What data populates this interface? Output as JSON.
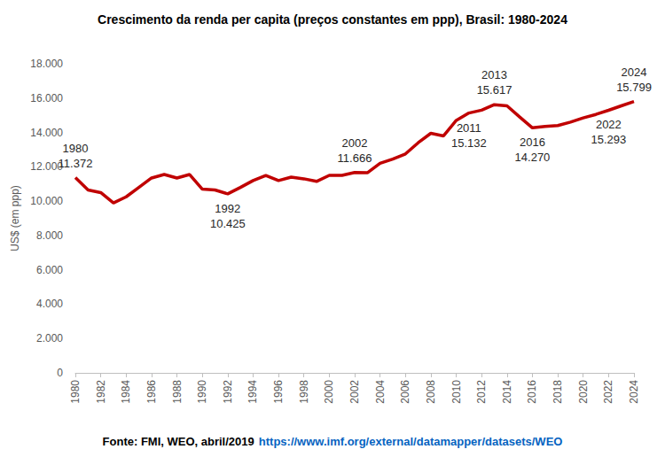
{
  "chart_data": {
    "type": "line",
    "title": "Crescimento da renda per capita (preços constantes em ppp), Brasil: 1980-2024",
    "y_label": "US$ (em ppp)",
    "source": "Fonte: FMI, WEO, abril/2019",
    "source_url": "https://www.imf.org/external/datamapper/datasets/WEO",
    "color": "#c00000",
    "grid": false,
    "x": [
      1980,
      1981,
      1982,
      1983,
      1984,
      1985,
      1986,
      1987,
      1988,
      1989,
      1990,
      1991,
      1992,
      1993,
      1994,
      1995,
      1996,
      1997,
      1998,
      1999,
      2000,
      2001,
      2002,
      2003,
      2004,
      2005,
      2006,
      2007,
      2008,
      2009,
      2010,
      2011,
      2012,
      2013,
      2014,
      2015,
      2016,
      2017,
      2018,
      2019,
      2020,
      2021,
      2022,
      2023,
      2024
    ],
    "values": [
      11372,
      10650,
      10500,
      9900,
      10250,
      10800,
      11350,
      11550,
      11350,
      11550,
      10700,
      10650,
      10425,
      10800,
      11200,
      11500,
      11200,
      11400,
      11300,
      11150,
      11500,
      11500,
      11666,
      11650,
      12200,
      12450,
      12750,
      13400,
      13950,
      13800,
      14700,
      15132,
      15300,
      15617,
      15550,
      14900,
      14270,
      14350,
      14400,
      14600,
      14850,
      15050,
      15293,
      15550,
      15799
    ],
    "xlim": [
      1980,
      2024
    ],
    "xticks": [
      1980,
      1982,
      1984,
      1986,
      1988,
      1990,
      1992,
      1994,
      1996,
      1998,
      2000,
      2002,
      2004,
      2006,
      2008,
      2010,
      2012,
      2014,
      2016,
      2018,
      2020,
      2022,
      2024
    ],
    "ylim": [
      0,
      18000
    ],
    "yticks": [
      0,
      {
        "value": 2000,
        "label": "2.000"
      },
      {
        "value": 4000,
        "label": "4.000"
      },
      {
        "value": 6000,
        "label": "6.000"
      },
      {
        "value": 8000,
        "label": "8.000"
      },
      {
        "value": 10000,
        "label": "10.000"
      },
      {
        "value": 12000,
        "label": "12.000"
      },
      {
        "value": 14000,
        "label": "14.000"
      },
      {
        "value": 16000,
        "label": "16.000"
      },
      {
        "value": 18000,
        "label": "18.000"
      }
    ],
    "annotations": [
      {
        "x": 1980,
        "label": "1980\n11.372"
      },
      {
        "x": 1992,
        "label": "1992\n10.425"
      },
      {
        "x": 2002,
        "label": "2002\n11.666"
      },
      {
        "x": 2011,
        "label": "2011\n15.132"
      },
      {
        "x": 2013,
        "label": "2013\n15.617"
      },
      {
        "x": 2016,
        "label": "2016\n14.270"
      },
      {
        "x": 2022,
        "label": "2022\n15.293"
      },
      {
        "x": 2024,
        "label": "2024\n15.799"
      }
    ]
  }
}
